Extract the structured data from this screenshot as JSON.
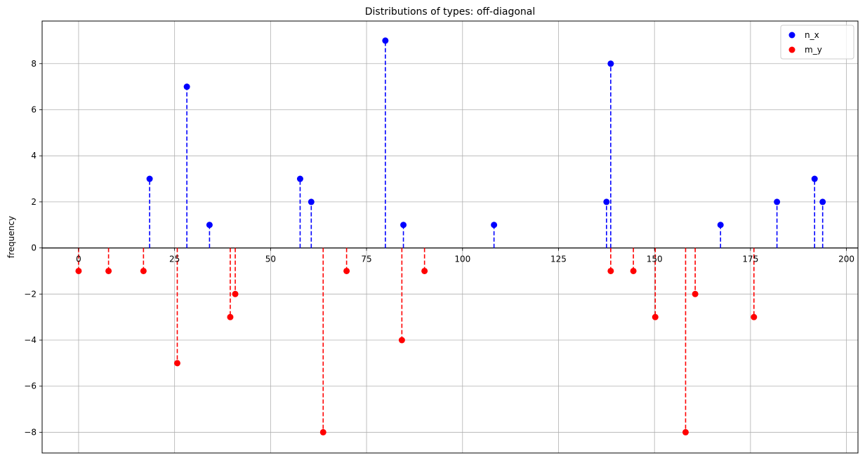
{
  "chart_data": {
    "type": "scatter",
    "title": "Distributions of types: off-diagonal",
    "xlabel": "",
    "ylabel": "frequency",
    "xlim": [
      -9.5,
      203
    ],
    "ylim": [
      -8.9,
      9.85
    ],
    "x_ticks": [
      0,
      25,
      50,
      75,
      100,
      125,
      150,
      175,
      200
    ],
    "y_ticks": [
      -8,
      -6,
      -4,
      -2,
      0,
      2,
      4,
      6,
      8
    ],
    "y_tick_labels": [
      "−8",
      "−6",
      "−4",
      "−2",
      "0",
      "2",
      "4",
      "6",
      "8"
    ],
    "grid": true,
    "legend_position": "top-right",
    "series": [
      {
        "name": "n_x",
        "color": "#0000ff",
        "linestyle": "dashed",
        "points": [
          {
            "x": 18.5,
            "y": 3
          },
          {
            "x": 28.2,
            "y": 7
          },
          {
            "x": 34.1,
            "y": 1
          },
          {
            "x": 57.7,
            "y": 3
          },
          {
            "x": 60.6,
            "y": 2
          },
          {
            "x": 79.9,
            "y": 9
          },
          {
            "x": 84.6,
            "y": 1
          },
          {
            "x": 108.2,
            "y": 1
          },
          {
            "x": 137.5,
            "y": 2
          },
          {
            "x": 138.6,
            "y": 8
          },
          {
            "x": 167.2,
            "y": 1
          },
          {
            "x": 181.9,
            "y": 2
          },
          {
            "x": 191.7,
            "y": 3
          },
          {
            "x": 193.8,
            "y": 2
          }
        ]
      },
      {
        "name": "m_y",
        "color": "#ff0000",
        "linestyle": "dashed",
        "points": [
          {
            "x": 0,
            "y": -1
          },
          {
            "x": 7.8,
            "y": -1
          },
          {
            "x": 16.9,
            "y": -1
          },
          {
            "x": 25.7,
            "y": -5
          },
          {
            "x": 39.5,
            "y": -3
          },
          {
            "x": 40.8,
            "y": -2
          },
          {
            "x": 63.7,
            "y": -8
          },
          {
            "x": 69.8,
            "y": -1
          },
          {
            "x": 84.2,
            "y": -4
          },
          {
            "x": 90.1,
            "y": -1
          },
          {
            "x": 138.6,
            "y": -1
          },
          {
            "x": 144.5,
            "y": -1
          },
          {
            "x": 150.2,
            "y": -3
          },
          {
            "x": 158.1,
            "y": -8
          },
          {
            "x": 160.6,
            "y": -2
          },
          {
            "x": 175.9,
            "y": -3
          }
        ]
      }
    ]
  }
}
